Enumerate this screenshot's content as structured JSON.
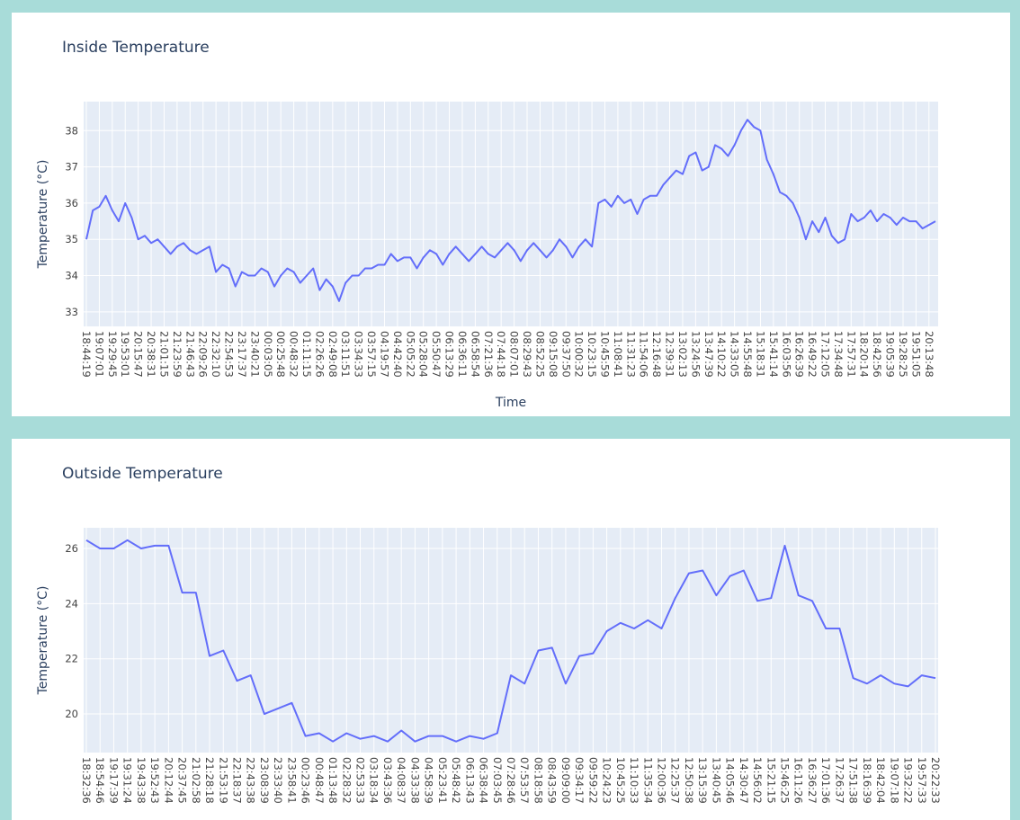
{
  "chart_data": [
    {
      "type": "line",
      "title": "Inside Temperature",
      "xlabel": "Time",
      "ylabel": "Temperature (°C)",
      "color": "#636efa",
      "grid": true,
      "ylim": [
        32.6,
        38.8
      ],
      "yticks": [
        33,
        34,
        35,
        36,
        37,
        38
      ],
      "categories": [
        "18:44:19",
        null,
        "19:07:01",
        null,
        "19:29:45",
        null,
        "19:53:01",
        null,
        "20:15:47",
        null,
        "20:38:31",
        null,
        "21:01:15",
        null,
        "21:23:59",
        null,
        "21:46:43",
        null,
        "22:09:26",
        null,
        "22:32:10",
        null,
        "22:54:53",
        null,
        "23:17:37",
        null,
        "23:40:21",
        null,
        "00:03:05",
        null,
        "00:25:48",
        null,
        "00:48:32",
        null,
        "01:11:15",
        null,
        "02:26:26",
        null,
        "02:49:08",
        null,
        "03:11:51",
        null,
        "03:34:33",
        null,
        "03:57:15",
        null,
        "04:19:57",
        null,
        "04:42:40",
        null,
        "05:05:22",
        null,
        "05:28:04",
        null,
        "05:50:47",
        null,
        "06:13:29",
        null,
        "06:36:11",
        null,
        "06:58:54",
        null,
        "07:21:36",
        null,
        "07:44:18",
        null,
        "08:07:01",
        null,
        "08:29:43",
        null,
        "08:52:25",
        null,
        "09:15:08",
        null,
        "09:37:50",
        null,
        "10:00:32",
        null,
        "10:23:15",
        null,
        "10:45:59",
        null,
        "11:08:41",
        null,
        "11:31:23",
        null,
        "11:54:06",
        null,
        "12:16:48",
        null,
        "12:39:31",
        null,
        "13:02:13",
        null,
        "13:24:56",
        null,
        "13:47:39",
        null,
        "14:10:22",
        null,
        "14:33:05",
        null,
        "14:55:48",
        null,
        "15:18:31",
        null,
        "15:41:14",
        null,
        "16:03:56",
        null,
        "16:26:39",
        null,
        "16:49:22",
        null,
        "17:12:05",
        null,
        "17:34:48",
        null,
        "17:57:31",
        null,
        "18:20:14",
        null,
        "18:42:56",
        null,
        "19:05:39",
        null,
        "19:28:25",
        null,
        "19:51:05",
        null,
        "20:13:48",
        null
      ],
      "values": [
        35.0,
        35.8,
        35.9,
        36.2,
        35.8,
        35.5,
        36.0,
        35.6,
        35.0,
        35.1,
        34.9,
        35.0,
        34.8,
        34.6,
        34.8,
        34.9,
        34.7,
        34.6,
        34.7,
        34.8,
        34.1,
        34.3,
        34.2,
        33.7,
        34.1,
        34.0,
        34.0,
        34.2,
        34.1,
        33.7,
        34.0,
        34.2,
        34.1,
        33.8,
        34.0,
        34.2,
        33.6,
        33.9,
        33.7,
        33.3,
        33.8,
        34.0,
        34.0,
        34.2,
        34.2,
        34.3,
        34.3,
        34.6,
        34.4,
        34.5,
        34.5,
        34.2,
        34.5,
        34.7,
        34.6,
        34.3,
        34.6,
        34.8,
        34.6,
        34.4,
        34.6,
        34.8,
        34.6,
        34.5,
        34.7,
        34.9,
        34.7,
        34.4,
        34.7,
        34.9,
        34.7,
        34.5,
        34.7,
        35.0,
        34.8,
        34.5,
        34.8,
        35.0,
        34.8,
        36.0,
        36.1,
        35.9,
        36.2,
        36.0,
        36.1,
        35.7,
        36.1,
        36.2,
        36.2,
        36.5,
        36.7,
        36.9,
        36.8,
        37.3,
        37.4,
        36.9,
        37.0,
        37.6,
        37.5,
        37.3,
        37.6,
        38.0,
        38.3,
        38.1,
        38.0,
        37.2,
        36.8,
        36.3,
        36.2,
        36.0,
        35.6,
        35.0,
        35.5,
        35.2,
        35.6,
        35.1,
        34.9,
        35.0,
        35.7,
        35.5,
        35.6,
        35.8,
        35.5,
        35.7,
        35.6,
        35.4,
        35.6,
        35.5,
        35.5,
        35.3,
        35.4,
        35.5
      ]
    },
    {
      "type": "line",
      "title": "Outside Temperature",
      "ylabel": "Temperature (°C)",
      "color": "#636efa",
      "grid": true,
      "ylim": [
        18.6,
        26.75
      ],
      "yticks": [
        20,
        22,
        24,
        26
      ],
      "categories": [
        "18:32:36",
        "18:54:46",
        "19:17:39",
        "19:31:24",
        "19:43:38",
        "19:52:43",
        "20:12:44",
        "20:37:45",
        "21:02:58",
        "21:28:18",
        "21:53:19",
        "22:18:37",
        "22:43:38",
        "23:08:39",
        "23:33:40",
        "23:58:41",
        "00:23:46",
        "00:48:47",
        "01:13:48",
        "02:28:32",
        "02:53:33",
        "03:18:34",
        "03:43:36",
        "04:08:37",
        "04:33:38",
        "04:58:39",
        "05:23:41",
        "05:48:42",
        "06:13:43",
        "06:38:44",
        "07:03:45",
        "07:28:46",
        "07:53:57",
        "08:18:58",
        "08:43:59",
        "09:09:00",
        "09:34:17",
        "09:59:22",
        "10:24:23",
        "10:45:25",
        "11:10:33",
        "11:35:34",
        "12:00:36",
        "12:25:37",
        "12:50:38",
        "13:15:39",
        "13:40:45",
        "14:05:46",
        "14:30:47",
        "14:56:02",
        "15:21:15",
        "15:46:25",
        "16:11:26",
        "16:36:27",
        "17:01:36",
        "17:26:37",
        "17:51:38",
        "18:16:39",
        "18:42:04",
        "19:07:18",
        "19:32:22",
        "19:57:33",
        "20:22:33"
      ],
      "values": [
        26.3,
        26.0,
        26.0,
        26.3,
        26.0,
        26.1,
        26.1,
        24.4,
        24.4,
        22.1,
        22.3,
        21.2,
        21.4,
        20.0,
        20.2,
        20.4,
        19.2,
        19.3,
        19.0,
        19.3,
        19.1,
        19.2,
        19.0,
        19.4,
        19.0,
        19.2,
        19.2,
        19.0,
        19.2,
        19.1,
        19.3,
        21.4,
        21.1,
        22.3,
        22.4,
        21.1,
        22.1,
        22.2,
        23.0,
        23.3,
        23.1,
        23.4,
        23.1,
        24.2,
        25.1,
        25.2,
        24.3,
        25.0,
        25.2,
        24.1,
        24.2,
        26.1,
        24.3,
        24.1,
        23.1,
        23.1,
        21.3,
        21.1,
        21.4,
        21.1,
        21.0,
        21.4,
        21.3
      ]
    }
  ]
}
